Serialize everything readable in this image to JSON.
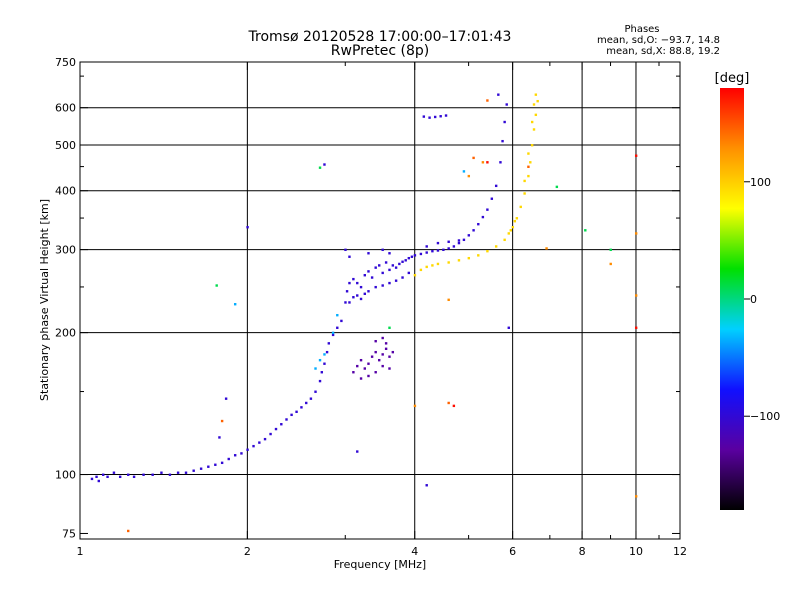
{
  "chart_data": {
    "type": "scatter",
    "title": "Tromsø 20120528 17:00:00–17:01:43",
    "subtitle": "RwPretec (8p)",
    "xlabel": "Frequency [MHz]",
    "ylabel": "Stationary phase Virtual Height [km]",
    "x_scale": "log",
    "y_scale": "log",
    "xlim": [
      1,
      12
    ],
    "ylim": [
      73,
      750
    ],
    "x_ticks": [
      {
        "value": 1,
        "label": "1"
      },
      {
        "value": 2,
        "label": "2"
      },
      {
        "value": 4,
        "label": "4"
      },
      {
        "value": 6,
        "label": "6"
      },
      {
        "value": 8,
        "label": "8"
      },
      {
        "value": 10,
        "label": "10"
      },
      {
        "value": 12,
        "label": "12"
      }
    ],
    "x_gridlines": [
      2,
      4,
      6,
      8,
      10
    ],
    "y_ticks": [
      {
        "value": 75,
        "label": "75"
      },
      {
        "value": 100,
        "label": "100"
      },
      {
        "value": 200,
        "label": "200"
      },
      {
        "value": 300,
        "label": "300"
      },
      {
        "value": 400,
        "label": "400"
      },
      {
        "value": 500,
        "label": "500"
      },
      {
        "value": 600,
        "label": "600"
      },
      {
        "value": 750,
        "label": "750"
      }
    ],
    "y_gridlines": [
      100,
      200,
      300,
      400,
      500,
      600
    ],
    "grid": true,
    "phase_stats": {
      "heading": "Phases",
      "line1": "mean, sd,O: −93.7, 14.8",
      "line2": "mean, sd,X:  88.8, 19.2"
    },
    "colorbar": {
      "label": "[deg]",
      "range": [
        -180,
        180
      ],
      "ticks": [
        {
          "value": 100,
          "label": "100"
        },
        {
          "value": 0,
          "label": "0"
        },
        {
          "value": -100,
          "label": "−100"
        }
      ],
      "colors": [
        "#000000",
        "#5a00a0",
        "#1010ff",
        "#00d0ff",
        "#00e000",
        "#ffff00",
        "#ff9000",
        "#ff0000"
      ]
    },
    "series": [
      {
        "points": [
          [
            1.05,
            98
          ],
          [
            1.07,
            99
          ],
          [
            1.08,
            97
          ],
          [
            1.1,
            100
          ],
          [
            1.12,
            99
          ],
          [
            1.15,
            101
          ],
          [
            1.18,
            99
          ],
          [
            1.22,
            100
          ],
          [
            1.25,
            99
          ],
          [
            1.3,
            100
          ],
          [
            1.35,
            100
          ],
          [
            1.4,
            101
          ],
          [
            1.45,
            100
          ],
          [
            1.5,
            101
          ],
          [
            1.55,
            101
          ],
          [
            1.6,
            102
          ],
          [
            1.65,
            103
          ],
          [
            1.7,
            104
          ],
          [
            1.75,
            105
          ],
          [
            1.8,
            106
          ],
          [
            1.85,
            108
          ],
          [
            1.9,
            110
          ],
          [
            1.95,
            111
          ],
          [
            2.0,
            113
          ],
          [
            2.05,
            115
          ],
          [
            2.1,
            117
          ],
          [
            2.15,
            119
          ],
          [
            2.2,
            122
          ],
          [
            2.25,
            125
          ],
          [
            2.3,
            128
          ],
          [
            2.35,
            131
          ],
          [
            2.4,
            134
          ],
          [
            2.45,
            136
          ],
          [
            2.5,
            139
          ],
          [
            2.55,
            142
          ],
          [
            2.6,
            145
          ],
          [
            2.65,
            150
          ],
          [
            2.7,
            158
          ],
          [
            2.72,
            165
          ],
          [
            2.75,
            172
          ],
          [
            2.78,
            182
          ],
          [
            2.8,
            190
          ],
          [
            2.85,
            198
          ],
          [
            2.9,
            205
          ],
          [
            2.95,
            212
          ],
          [
            3.0,
            232
          ],
          [
            3.02,
            245
          ],
          [
            3.05,
            255
          ],
          [
            3.1,
            260
          ],
          [
            3.15,
            255
          ],
          [
            3.2,
            250
          ],
          [
            3.25,
            265
          ],
          [
            3.3,
            270
          ],
          [
            3.35,
            262
          ],
          [
            3.4,
            275
          ],
          [
            3.45,
            278
          ],
          [
            3.5,
            268
          ],
          [
            3.55,
            282
          ],
          [
            3.6,
            272
          ],
          [
            3.65,
            278
          ],
          [
            3.7,
            275
          ],
          [
            3.75,
            280
          ],
          [
            3.8,
            283
          ],
          [
            3.85,
            285
          ],
          [
            3.9,
            288
          ],
          [
            3.95,
            290
          ],
          [
            4.0,
            292
          ],
          [
            4.1,
            294
          ],
          [
            4.2,
            296
          ],
          [
            4.3,
            298
          ],
          [
            4.4,
            299
          ],
          [
            4.5,
            300
          ],
          [
            4.6,
            302
          ],
          [
            4.7,
            305
          ],
          [
            4.8,
            310
          ],
          [
            4.9,
            315
          ],
          [
            5.0,
            322
          ],
          [
            5.1,
            330
          ],
          [
            5.2,
            340
          ],
          [
            5.3,
            352
          ],
          [
            5.4,
            365
          ],
          [
            5.5,
            385
          ],
          [
            5.6,
            410
          ],
          [
            5.7,
            460
          ],
          [
            5.75,
            510
          ],
          [
            5.8,
            560
          ],
          [
            5.85,
            610
          ],
          [
            5.65,
            640
          ],
          [
            3.05,
            232
          ],
          [
            3.1,
            238
          ],
          [
            3.15,
            240
          ],
          [
            3.2,
            236
          ],
          [
            3.25,
            242
          ],
          [
            3.3,
            245
          ],
          [
            3.4,
            250
          ],
          [
            3.5,
            252
          ],
          [
            3.6,
            255
          ],
          [
            3.7,
            258
          ],
          [
            3.8,
            262
          ],
          [
            3.9,
            268
          ],
          [
            4.2,
            305
          ],
          [
            4.4,
            310
          ],
          [
            4.6,
            312
          ],
          [
            4.8,
            314
          ],
          [
            3.0,
            300
          ],
          [
            3.05,
            290
          ],
          [
            3.3,
            295
          ],
          [
            3.5,
            300
          ],
          [
            3.6,
            295
          ],
          [
            4.15,
            575
          ],
          [
            4.25,
            572
          ],
          [
            4.35,
            574
          ],
          [
            4.45,
            576
          ],
          [
            4.55,
            578
          ],
          [
            1.83,
            145
          ],
          [
            1.78,
            120
          ],
          [
            2.0,
            335
          ],
          [
            2.75,
            455
          ],
          [
            3.15,
            112
          ],
          [
            4.2,
            95
          ],
          [
            5.9,
            205
          ]
        ],
        "phase": -100
      },
      {
        "points": [
          [
            3.1,
            165
          ],
          [
            3.15,
            170
          ],
          [
            3.2,
            175
          ],
          [
            3.25,
            168
          ],
          [
            3.3,
            172
          ],
          [
            3.35,
            178
          ],
          [
            3.4,
            182
          ],
          [
            3.45,
            175
          ],
          [
            3.5,
            180
          ],
          [
            3.55,
            185
          ],
          [
            3.6,
            178
          ],
          [
            3.65,
            182
          ],
          [
            3.2,
            160
          ],
          [
            3.3,
            162
          ],
          [
            3.4,
            165
          ],
          [
            3.5,
            170
          ],
          [
            3.6,
            168
          ],
          [
            3.4,
            192
          ],
          [
            3.5,
            195
          ],
          [
            3.55,
            190
          ]
        ],
        "phase": -125
      },
      {
        "points": [
          [
            4.0,
            265
          ],
          [
            4.1,
            272
          ],
          [
            4.2,
            276
          ],
          [
            4.3,
            278
          ],
          [
            4.4,
            280
          ],
          [
            4.6,
            282
          ],
          [
            4.8,
            285
          ],
          [
            5.0,
            288
          ],
          [
            5.2,
            292
          ],
          [
            5.4,
            298
          ],
          [
            5.6,
            305
          ],
          [
            5.8,
            315
          ],
          [
            5.9,
            325
          ],
          [
            6.0,
            335
          ],
          [
            6.1,
            350
          ],
          [
            6.2,
            370
          ],
          [
            6.3,
            395
          ],
          [
            6.4,
            430
          ],
          [
            6.45,
            460
          ],
          [
            6.5,
            500
          ],
          [
            6.55,
            540
          ],
          [
            6.6,
            580
          ],
          [
            6.65,
            620
          ],
          [
            6.6,
            640
          ],
          [
            6.55,
            610
          ],
          [
            6.5,
            560
          ],
          [
            6.4,
            480
          ],
          [
            6.3,
            420
          ],
          [
            5.95,
            330
          ],
          [
            6.05,
            345
          ]
        ],
        "phase": 95
      },
      {
        "points": [
          [
            2.7,
            175
          ],
          [
            2.75,
            180
          ],
          [
            2.65,
            168
          ],
          [
            2.85,
            200
          ],
          [
            2.9,
            218
          ],
          [
            1.9,
            230
          ],
          [
            4.9,
            440
          ]
        ],
        "phase": -35
      },
      {
        "points": [
          [
            1.76,
            252
          ],
          [
            3.6,
            205
          ],
          [
            7.2,
            408
          ],
          [
            8.1,
            330
          ],
          [
            9.0,
            300
          ],
          [
            2.7,
            448
          ]
        ],
        "phase": 10
      },
      {
        "points": [
          [
            1.22,
            76
          ],
          [
            1.8,
            130
          ],
          [
            5.1,
            470
          ],
          [
            5.4,
            622
          ],
          [
            6.4,
            450
          ],
          [
            4.6,
            142
          ]
        ],
        "phase": 145
      },
      {
        "points": [
          [
            5.0,
            430
          ],
          [
            5.3,
            460
          ],
          [
            6.9,
            302
          ],
          [
            9.0,
            280
          ],
          [
            10.0,
            240
          ],
          [
            10.0,
            90
          ],
          [
            10.0,
            325
          ],
          [
            4.0,
            140
          ],
          [
            4.6,
            235
          ]
        ],
        "phase": 130
      },
      {
        "points": [
          [
            10.0,
            475
          ],
          [
            10.0,
            205
          ],
          [
            5.4,
            460
          ],
          [
            4.7,
            140
          ]
        ],
        "phase": 175
      }
    ]
  }
}
